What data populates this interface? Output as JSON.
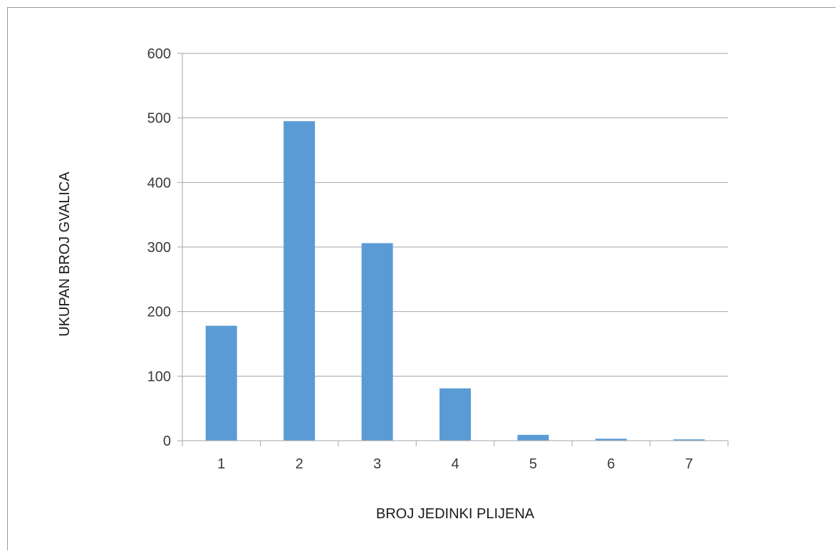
{
  "colors": {
    "bar": "#5b9bd5",
    "grid": "#a6a6a6",
    "text": "#3a3a3a"
  },
  "chart_data": {
    "type": "bar",
    "categories": [
      "1",
      "2",
      "3",
      "4",
      "5",
      "6",
      "7"
    ],
    "values": [
      178,
      495,
      306,
      81,
      9,
      3,
      2
    ],
    "title": "",
    "xlabel": "BROJ JEDINKI PLIJENA",
    "ylabel": "UKUPAN BROJ GVALICA",
    "ylim": [
      0,
      600
    ],
    "yticks": [
      0,
      100,
      200,
      300,
      400,
      500,
      600
    ],
    "grid": true,
    "legend": "none"
  }
}
